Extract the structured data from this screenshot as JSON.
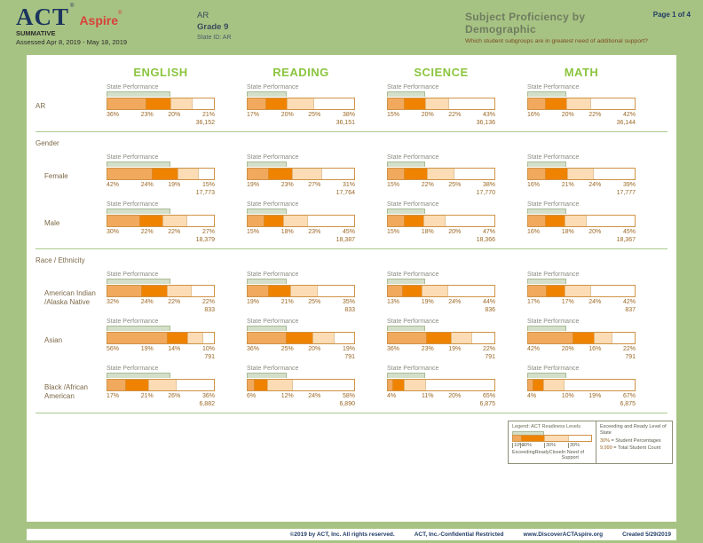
{
  "header": {
    "logo_act": "ACT",
    "logo_aspire": "Aspire",
    "program": "SUMMATIVE",
    "assessed": "Assessed Apr 8, 2019 - May 18, 2019",
    "org": "AR",
    "grade": "Grade 9",
    "state_id": "State ID: AR",
    "title": "Subject Proficiency by Demographic",
    "question": "Which student subgroups are in greatest need of additional support?",
    "page": "Page 1 of 4"
  },
  "subjects": [
    "ENGLISH",
    "READING",
    "SCIENCE",
    "MATH"
  ],
  "state_performance_label": "State Performance",
  "chart_data": {
    "type": "bar",
    "stacked": true,
    "orientation": "horizontal",
    "segment_levels": [
      "Exceeding",
      "Ready",
      "Close",
      "In Need of Support"
    ],
    "segment_colors": [
      "#f1a95e",
      "#ef8300",
      "#fbdcb4",
      "#ffffff"
    ],
    "state_overlay_color": "#d4dfca",
    "state_exceeding_ready_pct": [
      59,
      37,
      35,
      36
    ],
    "groups": [
      {
        "section": "",
        "label": "AR",
        "top_level": true,
        "charts": [
          {
            "pcts": [
              36,
              23,
              20,
              21
            ],
            "total": "36,152"
          },
          {
            "pcts": [
              17,
              20,
              25,
              38
            ],
            "total": "36,151"
          },
          {
            "pcts": [
              15,
              20,
              22,
              43
            ],
            "total": "36,136"
          },
          {
            "pcts": [
              16,
              20,
              22,
              42
            ],
            "total": "36,144"
          }
        ]
      },
      {
        "section": "Gender",
        "label": "Female",
        "top_level": false,
        "charts": [
          {
            "pcts": [
              42,
              24,
              19,
              15
            ],
            "total": "17,773"
          },
          {
            "pcts": [
              19,
              23,
              27,
              31
            ],
            "total": "17,764"
          },
          {
            "pcts": [
              15,
              22,
              25,
              38
            ],
            "total": "17,770"
          },
          {
            "pcts": [
              16,
              21,
              24,
              39
            ],
            "total": "17,777"
          }
        ]
      },
      {
        "section": "",
        "label": "Male",
        "top_level": false,
        "charts": [
          {
            "pcts": [
              30,
              22,
              22,
              27
            ],
            "total": "18,379"
          },
          {
            "pcts": [
              15,
              18,
              23,
              45
            ],
            "total": "18,387"
          },
          {
            "pcts": [
              15,
              18,
              20,
              47
            ],
            "total": "18,366"
          },
          {
            "pcts": [
              16,
              18,
              20,
              45
            ],
            "total": "18,367"
          }
        ]
      },
      {
        "section": "Race / Ethnicity",
        "label": "American Indian\n/Alaska Native",
        "top_level": false,
        "charts": [
          {
            "pcts": [
              32,
              24,
              22,
              22
            ],
            "total": "833"
          },
          {
            "pcts": [
              19,
              21,
              25,
              35
            ],
            "total": "833"
          },
          {
            "pcts": [
              13,
              19,
              24,
              44
            ],
            "total": "836"
          },
          {
            "pcts": [
              17,
              17,
              24,
              42
            ],
            "total": "837"
          }
        ]
      },
      {
        "section": "",
        "label": "Asian",
        "top_level": false,
        "charts": [
          {
            "pcts": [
              56,
              19,
              14,
              10
            ],
            "total": "791"
          },
          {
            "pcts": [
              36,
              25,
              20,
              19
            ],
            "total": "791"
          },
          {
            "pcts": [
              36,
              23,
              19,
              22
            ],
            "total": "791"
          },
          {
            "pcts": [
              42,
              20,
              16,
              22
            ],
            "total": "791"
          }
        ]
      },
      {
        "section": "",
        "label": "Black /African\nAmerican",
        "top_level": false,
        "charts": [
          {
            "pcts": [
              17,
              21,
              26,
              36
            ],
            "total": "6,882"
          },
          {
            "pcts": [
              6,
              12,
              24,
              58
            ],
            "total": "6,890"
          },
          {
            "pcts": [
              4,
              11,
              20,
              65
            ],
            "total": "6,875"
          },
          {
            "pcts": [
              4,
              10,
              19,
              67
            ],
            "total": "6,875"
          }
        ]
      }
    ]
  },
  "legend": {
    "title": "Legend: ACT Readiness Levels",
    "sample_pcts": [
      "10%",
      "30%",
      "30%",
      "30%"
    ],
    "sample_widths": [
      10,
      30,
      30,
      30
    ],
    "overlay_width_pct": 40,
    "level_labels": [
      "Exceeding",
      "Ready",
      "Close",
      "In Need of Support"
    ],
    "overlay_label": "Exceeding and Ready Level of State",
    "pct_value": "30%",
    "pct_note": "= Student Percentages",
    "count_value": "9,999",
    "count_note": "= Total Student Count"
  },
  "footer": {
    "copyright": "©2019 by ACT, Inc. All rights reserved.",
    "confidential": "ACT, Inc.-Confidential Restricted",
    "website": "www.DiscoverACTAspire.org",
    "created": "Created 5/29/2019"
  },
  "colors": {
    "page_background": "#a7c383",
    "card_background": "#ffffff",
    "subject_header_green": "#8bc53f",
    "title_green": "#6f7c60",
    "question_brown": "#7b4a21",
    "label_brown": "#7c6847",
    "value_brown": "#9b6826",
    "act_navy": "#1c355e",
    "aspire_red": "#d6423c",
    "bar_border": "#cf9347",
    "divider_green": "#aacb8c",
    "footer_navy": "#203a64"
  }
}
